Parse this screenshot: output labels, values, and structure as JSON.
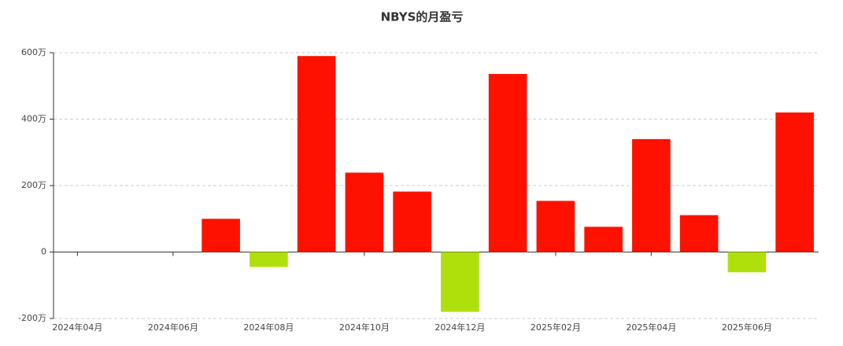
{
  "chart_data": {
    "type": "bar",
    "title": "NBYS的月盈亏",
    "categories": [
      "2024年04月",
      null,
      "2024年06月",
      null,
      "2024年08月",
      null,
      "2024年10月",
      null,
      "2024年12月",
      null,
      "2025年02月",
      null,
      "2025年04月",
      null,
      "2025年06月",
      null
    ],
    "values": [
      0,
      0,
      0,
      100,
      -45,
      590,
      239,
      182,
      -180,
      536,
      154,
      76,
      340,
      111,
      -61,
      420
    ],
    "positive_color": "#ff1100",
    "negative_color": "#b0e00c",
    "ylim": [
      -200,
      600
    ],
    "yticks": [
      {
        "value": -200,
        "label": "-200万"
      },
      0,
      {
        "value": 200,
        "label": "200万"
      },
      {
        "value": 400,
        "label": "400万"
      },
      {
        "value": 600,
        "label": "600万"
      }
    ],
    "grid": true
  }
}
